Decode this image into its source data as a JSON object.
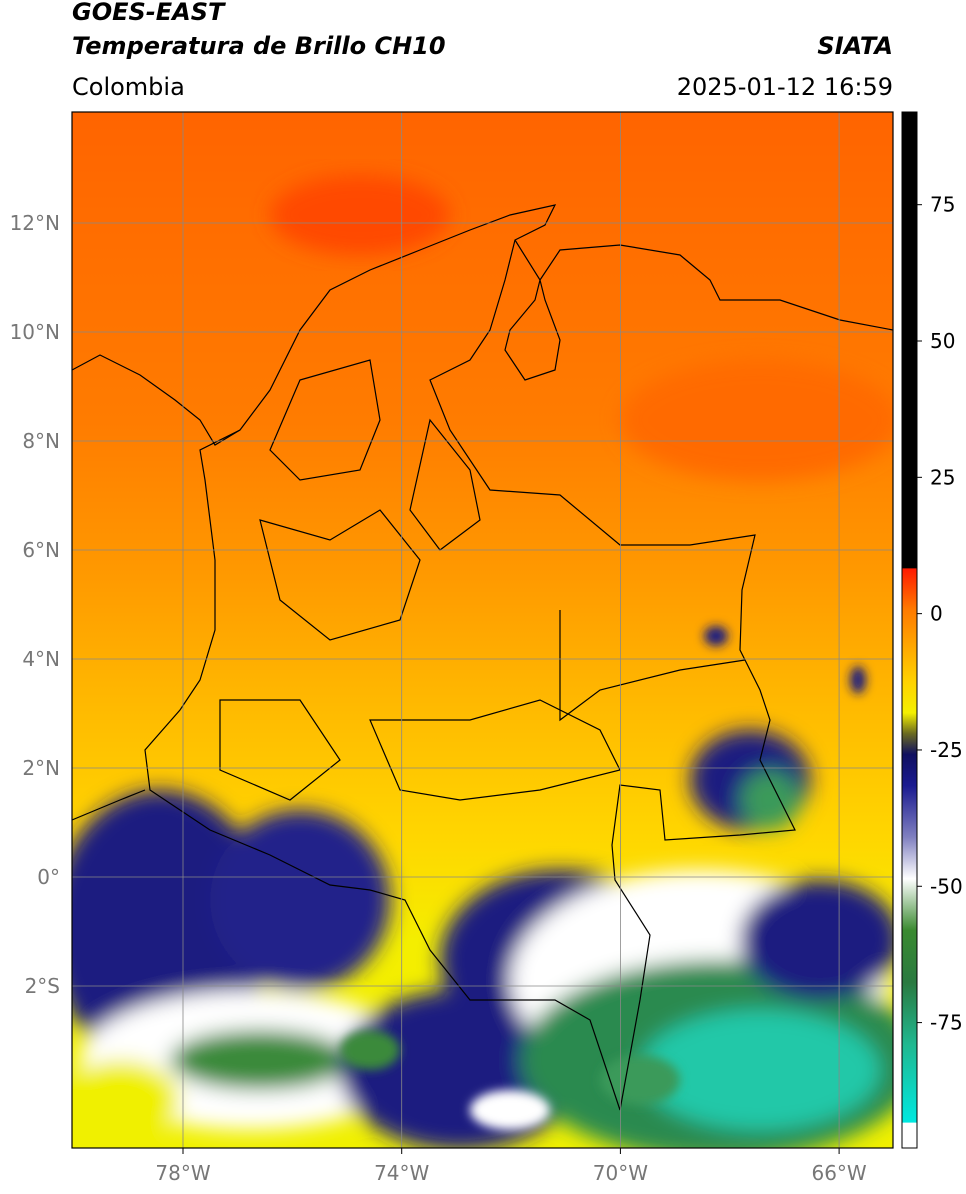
{
  "header": {
    "title": "GOES-EAST",
    "subtitle": "Temperatura de Brillo CH10",
    "source": "SIATA",
    "region": "Colombia",
    "datetime": "2025-01-12 16:59"
  },
  "map": {
    "lat_ticks": [
      "12°N",
      "10°N",
      "8°N",
      "6°N",
      "4°N",
      "2°N",
      "0°",
      "2°S"
    ],
    "lon_ticks": [
      "78°W",
      "74°W",
      "70°W",
      "66°W"
    ]
  },
  "colorbar": {
    "ticks": [
      75,
      50,
      25,
      0,
      -25,
      -50,
      -75
    ],
    "range": [
      -98,
      92
    ]
  }
}
